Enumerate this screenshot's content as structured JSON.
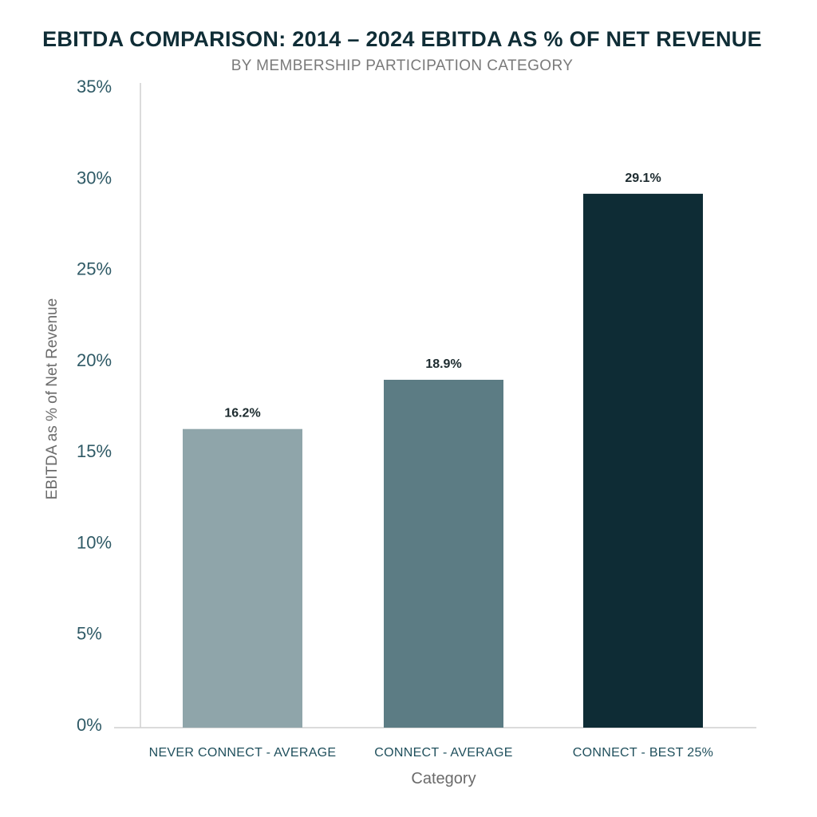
{
  "chart_data": {
    "type": "bar",
    "title": "EBITDA COMPARISON: 2014 – 2024 EBITDA AS % OF NET REVENUE",
    "subtitle": "BY MEMBERSHIP PARTICIPATION CATEGORY",
    "xlabel": "Category",
    "ylabel": "EBITDA as % of Net Revenue",
    "categories": [
      "NEVER CONNECT - AVERAGE",
      "CONNECT - AVERAGE",
      "CONNECT - BEST 25%"
    ],
    "values": [
      16.2,
      18.9,
      29.1
    ],
    "data_labels": [
      "16.2%",
      "18.9%",
      "29.1%"
    ],
    "bar_colors": [
      "#8fa5aa",
      "#5c7c84",
      "#0e2c35"
    ],
    "ylim": [
      0,
      35
    ],
    "yticks": [
      0,
      5,
      10,
      15,
      20,
      25,
      30,
      35
    ],
    "ytick_labels": [
      "0%",
      "5%",
      "10%",
      "15%",
      "20%",
      "25%",
      "30%",
      "35%"
    ],
    "grid": false,
    "legend": "none"
  }
}
